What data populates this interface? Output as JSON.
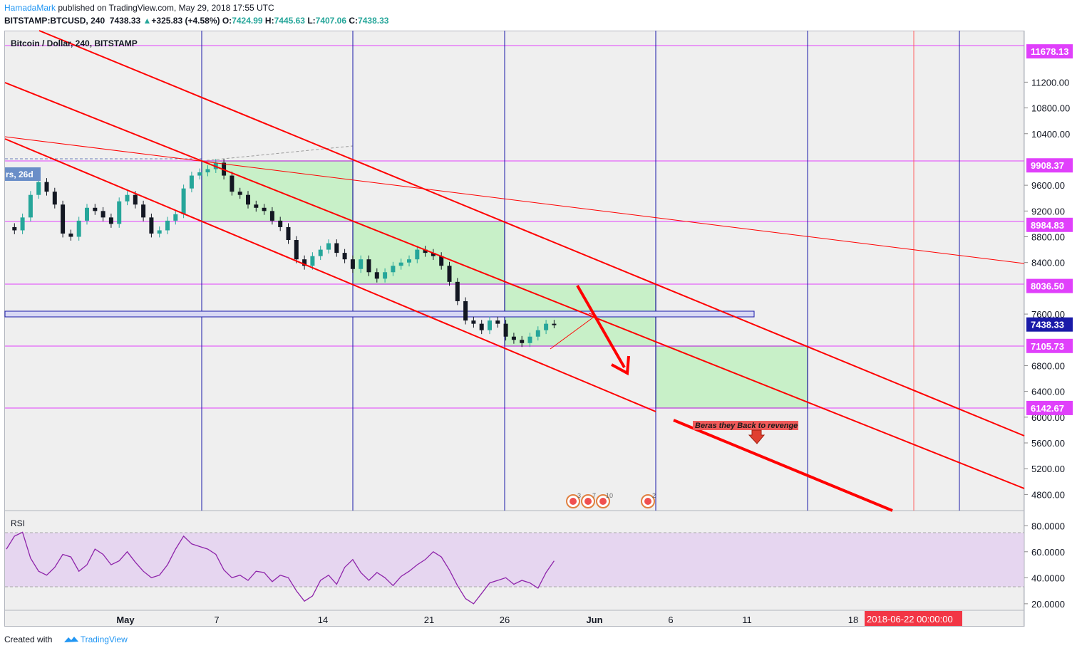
{
  "header": {
    "publisher": "HamadaMark",
    "published_text": "published on TradingView.com, May 29, 2018 17:55 UTC",
    "symbol": "BITSTAMP:BTCUSD, 240",
    "last": "7438.33",
    "change": "+325.83 (+4.58%)",
    "o_label": "O:",
    "o": "7424.99",
    "h_label": "H:",
    "h": "7445.63",
    "l_label": "L:",
    "l": "7407.06",
    "c_label": "C:",
    "c": "7438.33"
  },
  "chart_title": "Bitcoin / Dollar, 240, BITSTAMP",
  "left_label": "rs, 26d",
  "rsi_label": "RSI",
  "annotation": "Beras they Back to revenge",
  "footer": {
    "created_with": "Created with",
    "brand": "TradingView"
  },
  "colors": {
    "magenta": "#e040fb",
    "red": "#ff0000",
    "blue": "#1a1aa8",
    "green_box": "#c8f0c8",
    "rsi_band": "#e6d6f0"
  },
  "events": [
    "3",
    "7",
    "10",
    "2"
  ],
  "chart_data": [
    {
      "type": "line",
      "title": "Bitcoin / Dollar, 240, BITSTAMP",
      "ylim": [
        4550,
        12000
      ],
      "y_ticks": [
        "11200.00",
        "10800.00",
        "10400.00",
        "9600.00",
        "9200.00",
        "8800.00",
        "8400.00",
        "7600.00",
        "6800.00",
        "6400.00",
        "6000.00",
        "5600.00",
        "5200.00",
        "4800.00"
      ],
      "price_labels": [
        {
          "value": 11678.13,
          "label": "11678.13",
          "color": "#e040fb"
        },
        {
          "value": 9908.37,
          "label": "9908.37",
          "color": "#e040fb"
        },
        {
          "value": 8984.83,
          "label": "8984.83",
          "color": "#e040fb"
        },
        {
          "value": 8036.5,
          "label": "8036.50",
          "color": "#e040fb"
        },
        {
          "value": 7438.33,
          "label": "7438.33",
          "color": "#1a1aa8"
        },
        {
          "value": 7105.73,
          "label": "7105.73",
          "color": "#e040fb"
        },
        {
          "value": 6142.67,
          "label": "6142.67",
          "color": "#e040fb"
        }
      ],
      "x_ticks": [
        "May",
        "7",
        "14",
        "21",
        "26",
        "Jun",
        "6",
        "11",
        "18"
      ],
      "date_label": "2018-06-22 00:00:00",
      "x_day_range": [
        26,
        57
      ],
      "series": [
        {
          "x": [
            26.0,
            26.5,
            27.0,
            27.5,
            28.0,
            28.5,
            29.0,
            29.5,
            30.0,
            30.5,
            31.0,
            31.5,
            32.0,
            32.5,
            33.0,
            33.5,
            34.0,
            34.5,
            35.0,
            35.5,
            36.0,
            36.5,
            37.0,
            37.5,
            38.0,
            38.5,
            39.0,
            39.5,
            40.0,
            40.5,
            41.0,
            41.5,
            42.0,
            42.5,
            43.0,
            43.5,
            44.0,
            44.5,
            45.0,
            45.5,
            46.0,
            46.5,
            47.0,
            47.5,
            48.0,
            48.5,
            49.0,
            49.5,
            50.0,
            50.5,
            51.0,
            51.5,
            52.0,
            52.5,
            53.0,
            53.5,
            54.0,
            54.5,
            55.0,
            55.5,
            56.0,
            56.5,
            57.0,
            57.5,
            58.0,
            58.5,
            59.0,
            59.5,
            60.0
          ],
          "values": [
            8950,
            8900,
            9100,
            9450,
            9650,
            9500,
            9300,
            8850,
            8800,
            9050,
            9250,
            9200,
            9100,
            9000,
            9350,
            9450,
            9300,
            9100,
            8850,
            8900,
            9050,
            9150,
            9550,
            9750,
            9800,
            9850,
            9950,
            9750,
            9500,
            9450,
            9300,
            9250,
            9200,
            9050,
            8950,
            8750,
            8450,
            8350,
            8500,
            8600,
            8700,
            8550,
            8450,
            8300,
            8450,
            8250,
            8150,
            8250,
            8350,
            8400,
            8450,
            8600,
            8550,
            8500,
            8350,
            8100,
            7800,
            7500,
            7450,
            7350,
            7500,
            7450,
            7250,
            7200,
            7150,
            7250,
            7350,
            7450,
            7440
          ]
        }
      ]
    },
    {
      "type": "line",
      "title": "RSI",
      "ylim": [
        15,
        90
      ],
      "y_ticks": [
        "80.0000",
        "60.0000",
        "40.0000",
        "20.0000"
      ],
      "bands": [
        30,
        70
      ],
      "series": [
        {
          "x": [
            26.0,
            26.5,
            27.0,
            27.5,
            28.0,
            28.5,
            29.0,
            29.5,
            30.0,
            30.5,
            31.0,
            31.5,
            32.0,
            32.5,
            33.0,
            33.5,
            34.0,
            34.5,
            35.0,
            35.5,
            36.0,
            36.5,
            37.0,
            37.5,
            38.0,
            38.5,
            39.0,
            39.5,
            40.0,
            40.5,
            41.0,
            41.5,
            42.0,
            42.5,
            43.0,
            43.5,
            44.0,
            44.5,
            45.0,
            45.5,
            46.0,
            46.5,
            47.0,
            47.5,
            48.0,
            48.5,
            49.0,
            49.5,
            50.0,
            50.5,
            51.0,
            51.5,
            52.0,
            52.5,
            53.0,
            53.5,
            54.0,
            54.5,
            55.0,
            55.5,
            56.0,
            56.5,
            57.0,
            57.5,
            58.0,
            58.5,
            59.0,
            59.5,
            60.0
          ],
          "values": [
            62,
            72,
            75,
            55,
            45,
            42,
            48,
            58,
            56,
            45,
            50,
            62,
            58,
            50,
            53,
            60,
            52,
            45,
            40,
            42,
            50,
            62,
            72,
            66,
            64,
            62,
            58,
            46,
            40,
            42,
            38,
            45,
            44,
            37,
            42,
            40,
            30,
            22,
            26,
            38,
            42,
            35,
            48,
            54,
            44,
            38,
            44,
            40,
            34,
            41,
            45,
            50,
            54,
            60,
            56,
            46,
            34,
            24,
            20,
            28,
            36,
            38,
            40,
            35,
            38,
            36,
            32,
            44,
            53
          ]
        }
      ]
    }
  ]
}
